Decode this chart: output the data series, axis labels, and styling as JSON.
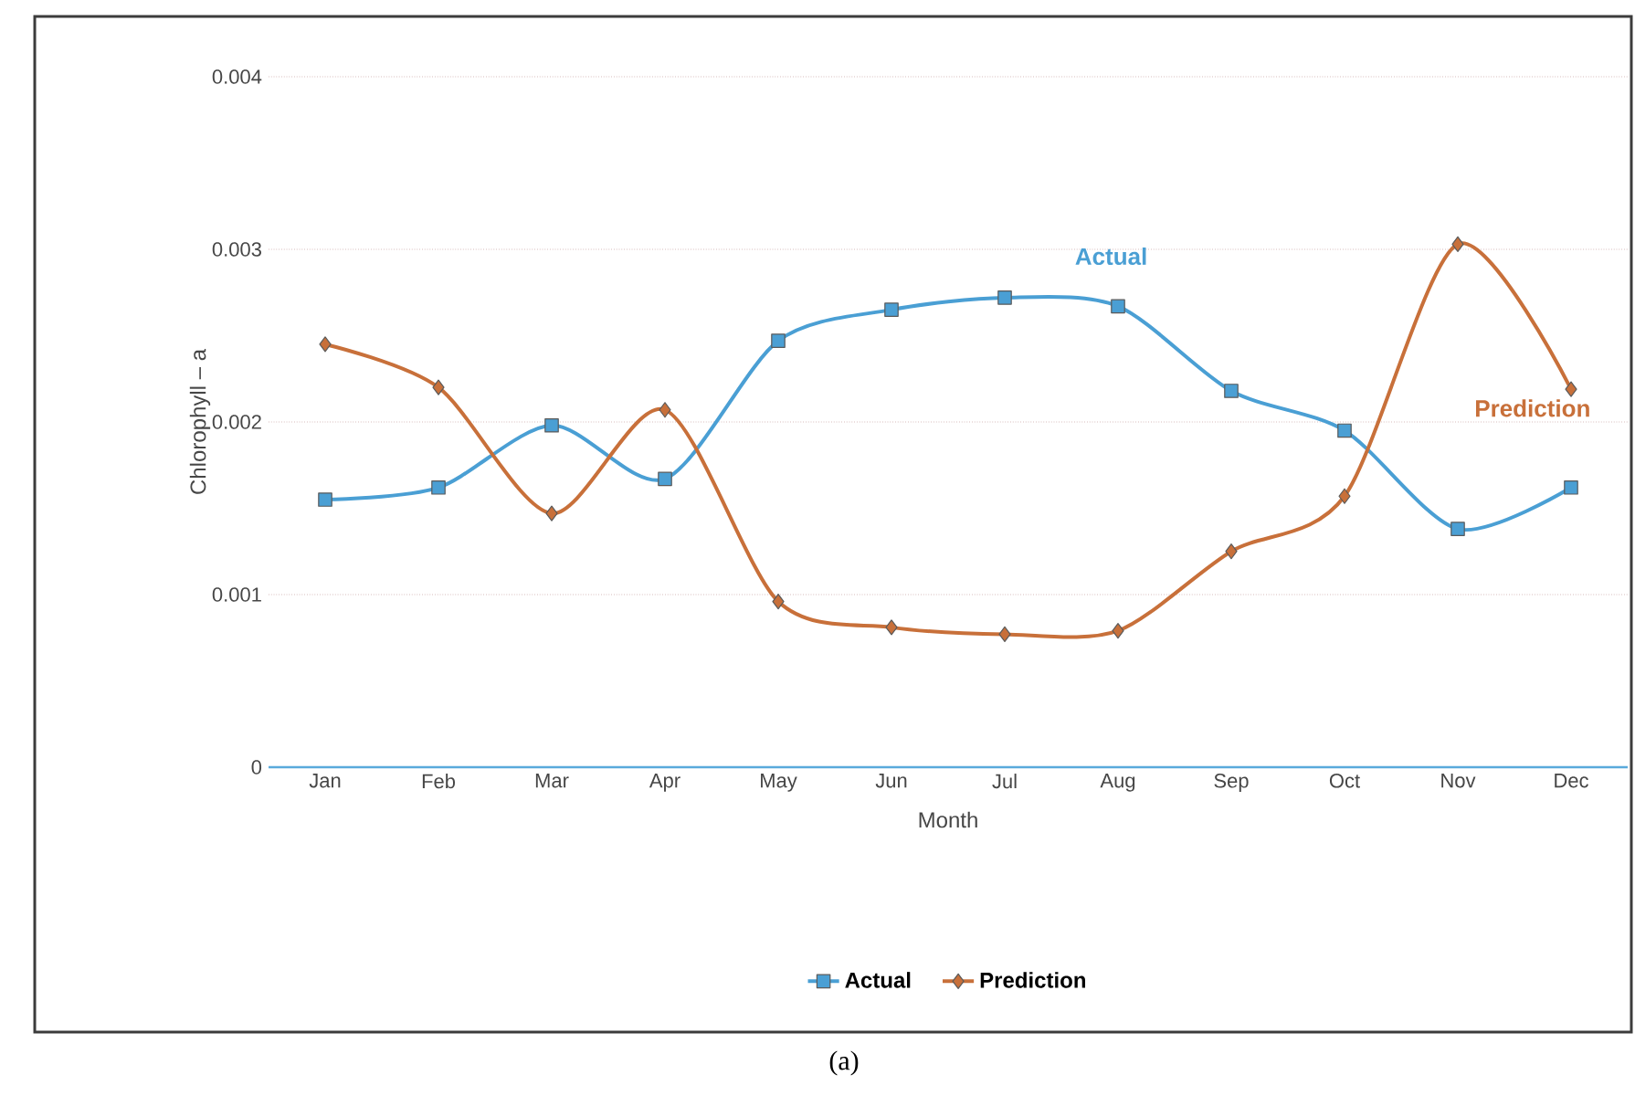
{
  "chart_data": {
    "type": "line",
    "xlabel": "Month",
    "ylabel": "Chlorophyll – a",
    "categories": [
      "Jan",
      "Feb",
      "Mar",
      "Apr",
      "May",
      "Jun",
      "Jul",
      "Aug",
      "Sep",
      "Oct",
      "Nov",
      "Dec"
    ],
    "series": [
      {
        "name": "Actual",
        "color": "#4a9fd4",
        "marker": "square",
        "values": [
          0.00155,
          0.00162,
          0.00198,
          0.00167,
          0.00247,
          0.00265,
          0.00272,
          0.00267,
          0.00218,
          0.00195,
          0.00138,
          0.00162
        ]
      },
      {
        "name": "Prediction",
        "color": "#c8703a",
        "marker": "diamond",
        "values": [
          0.00245,
          0.0022,
          0.00147,
          0.00207,
          0.00096,
          0.00081,
          0.00077,
          0.00079,
          0.00125,
          0.00157,
          0.00303,
          0.00219
        ]
      }
    ],
    "ylim": [
      0,
      0.004
    ],
    "yticks": [
      0,
      0.001,
      0.002,
      0.003,
      0.004
    ],
    "grid": "y",
    "legend": "bottom",
    "line_style": "solid",
    "annotations": [
      "Actual",
      "Prediction",
      "(a)"
    ]
  }
}
